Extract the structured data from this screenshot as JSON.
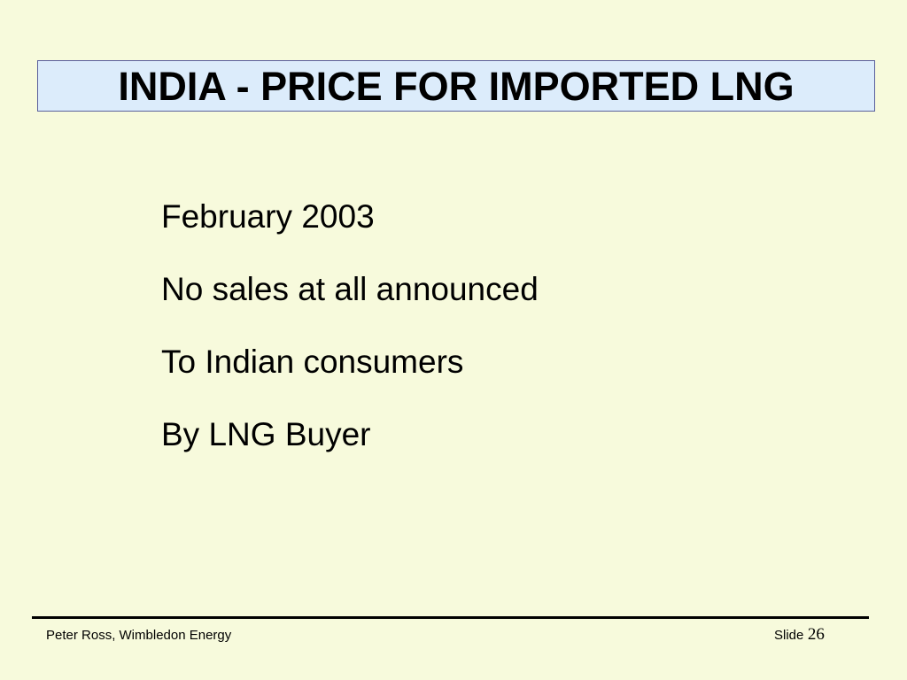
{
  "slide": {
    "title": "INDIA - PRICE FOR IMPORTED LNG",
    "lines": [
      "February 2003",
      "No sales at all announced",
      "To Indian consumers",
      "By LNG Buyer"
    ]
  },
  "footer": {
    "author": "Peter Ross, Wimbledon Energy",
    "slide_label": "Slide",
    "slide_number": "26"
  },
  "colors": {
    "background": "#f7fadc",
    "title_fill": "#dcecfb",
    "title_border": "#5a5f9c",
    "text": "#000000"
  }
}
